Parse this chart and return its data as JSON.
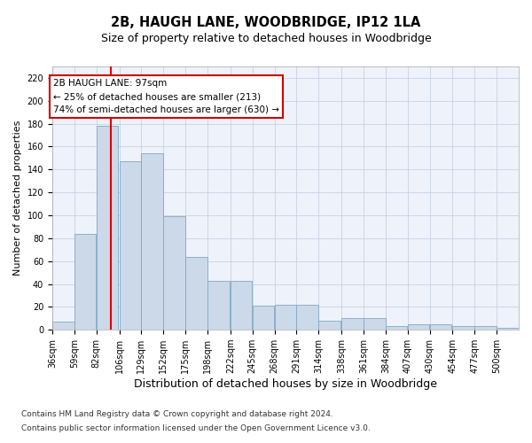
{
  "title": "2B, HAUGH LANE, WOODBRIDGE, IP12 1LA",
  "subtitle": "Size of property relative to detached houses in Woodbridge",
  "xlabel": "Distribution of detached houses by size in Woodbridge",
  "ylabel": "Number of detached properties",
  "bar_color": "#ccd9e8",
  "bar_edge_color": "#7fa8c8",
  "background_color": "#eef2fa",
  "grid_color": "#c0cce0",
  "vline_x": 97,
  "vline_color": "#dd0000",
  "annotation_line1": "2B HAUGH LANE: 97sqm",
  "annotation_line2": "← 25% of detached houses are smaller (213)",
  "annotation_line3": "74% of semi-detached houses are larger (630) →",
  "annotation_box_color": "#ffffff",
  "annotation_box_edge": "#cc0000",
  "bins": [
    36,
    59,
    82,
    106,
    129,
    152,
    175,
    198,
    222,
    245,
    268,
    291,
    314,
    338,
    361,
    384,
    407,
    430,
    454,
    477,
    500
  ],
  "values": [
    7,
    84,
    178,
    147,
    154,
    99,
    64,
    43,
    43,
    21,
    22,
    22,
    8,
    10,
    10,
    3,
    5,
    5,
    3,
    3,
    2
  ],
  "ylim": [
    0,
    230
  ],
  "yticks": [
    0,
    20,
    40,
    60,
    80,
    100,
    120,
    140,
    160,
    180,
    200,
    220
  ],
  "footer_line1": "Contains HM Land Registry data © Crown copyright and database right 2024.",
  "footer_line2": "Contains public sector information licensed under the Open Government Licence v3.0.",
  "title_fontsize": 10.5,
  "subtitle_fontsize": 9,
  "xlabel_fontsize": 9,
  "ylabel_fontsize": 8,
  "tick_fontsize": 7,
  "footer_fontsize": 6.5,
  "annotation_fontsize": 7.5
}
